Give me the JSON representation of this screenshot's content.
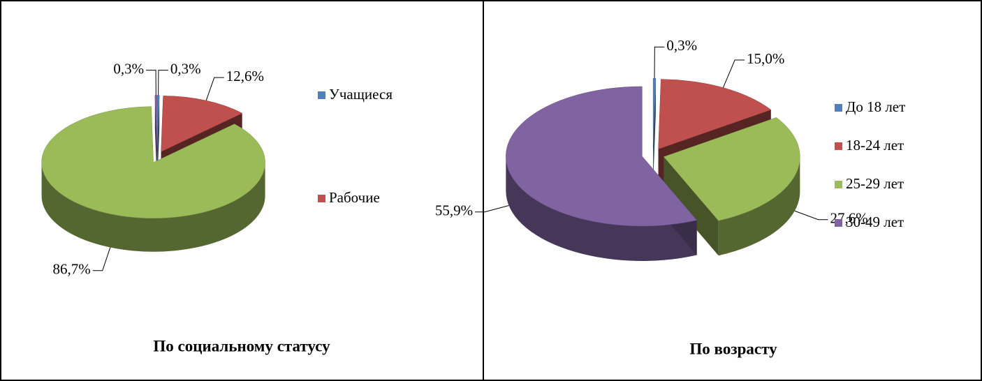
{
  "chart_data": [
    {
      "type": "pie3d",
      "title": "По социальному статусу",
      "categories": [
        "Учащиеся",
        "Рабочие",
        null,
        null
      ],
      "values": [
        0.3,
        12.6,
        86.7,
        0.3
      ],
      "value_labels": [
        "0,3%",
        "12,6%",
        "86,7%",
        "0,3%"
      ],
      "colors": [
        "#4f81bd",
        "#c0504d",
        "#9bbb59",
        "#8064a2"
      ]
    },
    {
      "type": "pie3d",
      "title": "По возрасту",
      "categories": [
        "До 18 лет",
        "18-24 лет",
        "25-29 лет",
        "30-49 лет"
      ],
      "values": [
        0.3,
        15.0,
        27.6,
        55.9
      ],
      "value_labels": [
        "0,3%",
        "15,0%",
        "27,6%",
        "55,9%"
      ],
      "colors": [
        "#4f81bd",
        "#c0504d",
        "#9bbb59",
        "#8064a2"
      ]
    }
  ]
}
